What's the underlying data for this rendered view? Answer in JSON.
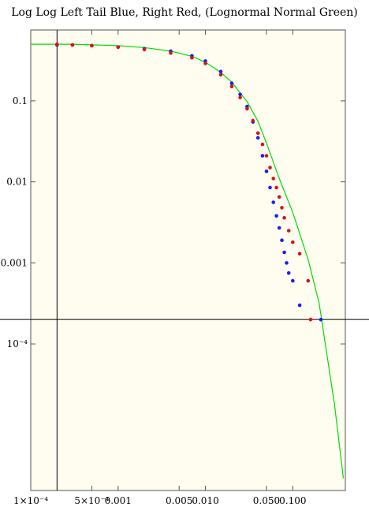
{
  "chart_data": {
    "type": "scatter",
    "title": "Log Log Left Tail Blue, Right Red, (Lognormal Normal Green)",
    "xlabel": "",
    "ylabel": "",
    "x_scale": "log",
    "y_scale": "log",
    "xlim": [
      0.0001,
      0.4
    ],
    "ylim": [
      1.55e-06,
      0.75
    ],
    "grid": false,
    "background": "#fffcf0",
    "ref_lines": {
      "x": 0.0002,
      "y": 0.0002
    },
    "x_ticks": [
      {
        "value": 0.0001,
        "label": "1×10⁻⁴"
      },
      {
        "value": 0.0005,
        "label": "5×10⁻⁴"
      },
      {
        "value": 0.001,
        "label": "0.001"
      },
      {
        "value": 0.005,
        "label": "0.005"
      },
      {
        "value": 0.01,
        "label": "0.010"
      },
      {
        "value": 0.05,
        "label": "0.050"
      },
      {
        "value": 0.1,
        "label": "0.100"
      }
    ],
    "y_ticks": [
      {
        "value": 0.1,
        "label": "0.1"
      },
      {
        "value": 0.01,
        "label": "0.01"
      },
      {
        "value": 0.001,
        "label": "0.001"
      },
      {
        "value": 0.0001,
        "label": "10⁻⁴"
      }
    ],
    "series": [
      {
        "color": "#1a1aff",
        "x": [
          0.0002,
          0.0003,
          0.0005,
          0.001,
          0.002,
          0.004,
          0.007,
          0.01,
          0.015,
          0.02,
          0.025,
          0.03,
          0.035,
          0.04,
          0.045,
          0.05,
          0.055,
          0.06,
          0.065,
          0.07,
          0.075,
          0.08,
          0.085,
          0.09,
          0.1,
          0.12,
          0.21
        ],
        "y": [
          0.49,
          0.49,
          0.48,
          0.46,
          0.44,
          0.41,
          0.36,
          0.31,
          0.23,
          0.165,
          0.12,
          0.085,
          0.055,
          0.035,
          0.021,
          0.0135,
          0.0085,
          0.0056,
          0.0038,
          0.0027,
          0.0019,
          0.00135,
          0.001,
          0.00075,
          0.0006,
          0.0003,
          0.0002
        ]
      },
      {
        "color": "#dd1111",
        "x": [
          0.0002,
          0.0003,
          0.0005,
          0.001,
          0.002,
          0.004,
          0.007,
          0.01,
          0.015,
          0.02,
          0.025,
          0.03,
          0.035,
          0.04,
          0.045,
          0.05,
          0.055,
          0.06,
          0.065,
          0.07,
          0.075,
          0.08,
          0.09,
          0.1,
          0.12,
          0.15,
          0.16
        ],
        "y": [
          0.5,
          0.49,
          0.48,
          0.46,
          0.43,
          0.39,
          0.34,
          0.29,
          0.21,
          0.15,
          0.11,
          0.08,
          0.057,
          0.04,
          0.029,
          0.021,
          0.015,
          0.011,
          0.0085,
          0.0065,
          0.0048,
          0.0036,
          0.0025,
          0.0018,
          0.0013,
          0.0006,
          0.0002
        ]
      }
    ],
    "fit_line": {
      "color": "#00dd00",
      "x": [
        0.0001,
        0.0003,
        0.001,
        0.002,
        0.004,
        0.007,
        0.01,
        0.015,
        0.02,
        0.03,
        0.04,
        0.05,
        0.07,
        0.1,
        0.15,
        0.2,
        0.3,
        0.38
      ],
      "y": [
        0.5,
        0.5,
        0.48,
        0.455,
        0.41,
        0.355,
        0.3,
        0.225,
        0.17,
        0.098,
        0.056,
        0.03,
        0.011,
        0.0042,
        0.0011,
        0.00032,
        1.8e-05,
        2.2e-06
      ]
    }
  }
}
